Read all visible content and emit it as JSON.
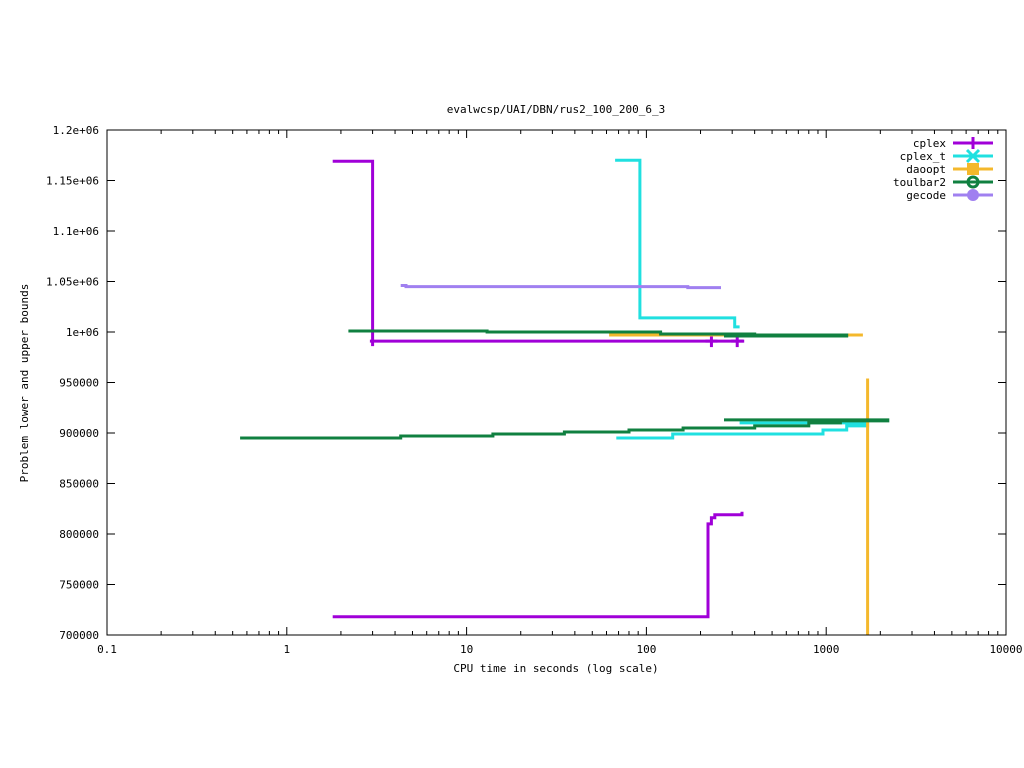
{
  "chart_data": {
    "type": "line",
    "title": "evalwcsp/UAI/DBN/rus2_100_200_6_3",
    "xlabel": "CPU time in seconds (log scale)",
    "ylabel": "Problem lower and upper bounds",
    "xscale": "log",
    "xlim": [
      0.1,
      10000
    ],
    "ylim": [
      700000,
      1200000
    ],
    "xticks": [
      {
        "v": 0.1,
        "label": "0.1"
      },
      {
        "v": 1,
        "label": "1"
      },
      {
        "v": 10,
        "label": "10"
      },
      {
        "v": 100,
        "label": "100"
      },
      {
        "v": 1000,
        "label": "1000"
      },
      {
        "v": 10000,
        "label": "10000"
      }
    ],
    "yticks": [
      {
        "v": 700000,
        "label": "700000"
      },
      {
        "v": 750000,
        "label": "750000"
      },
      {
        "v": 800000,
        "label": "800000"
      },
      {
        "v": 850000,
        "label": "850000"
      },
      {
        "v": 900000,
        "label": "900000"
      },
      {
        "v": 950000,
        "label": "950000"
      },
      {
        "v": 1000000,
        "label": "1e+06"
      },
      {
        "v": 1050000,
        "label": "1.05e+06"
      },
      {
        "v": 1100000,
        "label": "1.1e+06"
      },
      {
        "v": 1150000,
        "label": "1.15e+06"
      },
      {
        "v": 1200000,
        "label": "1.2e+06"
      }
    ],
    "grid": false,
    "legend_position": "top-right",
    "series": [
      {
        "name": "cplex",
        "color": "#a000d8",
        "marker": "plus",
        "lines": [
          [
            [
              1.8,
              1169000
            ],
            [
              3.0,
              1169000
            ],
            [
              3.0,
              986000
            ]
          ],
          [
            [
              2.9,
              991000
            ],
            [
              350,
              991000
            ]
          ],
          [
            [
              1.8,
              718000
            ],
            [
              220,
              718000
            ],
            [
              220,
              810000
            ],
            [
              230,
              810000
            ],
            [
              230,
              816000
            ],
            [
              240,
              816000
            ],
            [
              240,
              819000
            ],
            [
              340,
              819000
            ],
            [
              340,
              822000
            ]
          ]
        ],
        "markers": [
          [
            230,
            991000
          ],
          [
            320,
            991000
          ]
        ]
      },
      {
        "name": "cplex_t",
        "color": "#20e0e0",
        "marker": "x",
        "lines": [
          [
            [
              67,
              1170000
            ],
            [
              92,
              1170000
            ],
            [
              92,
              1014000
            ],
            [
              310,
              1014000
            ],
            [
              310,
              1005000
            ],
            [
              330,
              1005000
            ]
          ],
          [
            [
              68,
              895000
            ],
            [
              140,
              895000
            ],
            [
              140,
              899000
            ],
            [
              960,
              899000
            ],
            [
              960,
              903000
            ],
            [
              1300,
              903000
            ],
            [
              1300,
              907000
            ],
            [
              1700,
              907000
            ],
            [
              1700,
              910000
            ],
            [
              330,
              910000
            ]
          ]
        ],
        "markers": []
      },
      {
        "name": "daoopt",
        "color": "#f4b82c",
        "marker": "square",
        "lines": [
          [
            [
              62,
              997000
            ],
            [
              1600,
              997000
            ]
          ],
          [
            [
              1700,
              700000
            ],
            [
              1700,
              954000
            ]
          ]
        ],
        "markers": []
      },
      {
        "name": "toulbar2",
        "color": "#108040",
        "marker": "circle",
        "lines": [
          [
            [
              2.2,
              1001000
            ],
            [
              13,
              1001000
            ],
            [
              13,
              1000000
            ],
            [
              120,
              1000000
            ],
            [
              120,
              998000
            ],
            [
              400,
              998000
            ],
            [
              400,
              997000
            ],
            [
              1300,
              997000
            ],
            [
              1300,
              996000
            ],
            [
              270,
              996000
            ]
          ],
          [
            [
              0.55,
              895000
            ],
            [
              4.3,
              895000
            ],
            [
              4.3,
              897000
            ],
            [
              14,
              897000
            ],
            [
              14,
              899000
            ],
            [
              35,
              899000
            ],
            [
              35,
              901000
            ],
            [
              80,
              901000
            ],
            [
              80,
              903000
            ],
            [
              160,
              903000
            ],
            [
              160,
              905000
            ],
            [
              400,
              905000
            ],
            [
              400,
              907000
            ],
            [
              800,
              907000
            ],
            [
              800,
              910000
            ],
            [
              1200,
              910000
            ],
            [
              1200,
              912000
            ],
            [
              2200,
              912000
            ],
            [
              2200,
              913000
            ],
            [
              270,
              913000
            ]
          ]
        ],
        "markers": []
      },
      {
        "name": "gecode",
        "color": "#a080f0",
        "marker": "filled-circle",
        "lines": [
          [
            [
              4.3,
              1046000
            ],
            [
              4.6,
              1046000
            ],
            [
              4.6,
              1045000
            ],
            [
              170,
              1045000
            ],
            [
              170,
              1044000
            ],
            [
              260,
              1044000
            ]
          ]
        ],
        "markers": []
      }
    ]
  }
}
